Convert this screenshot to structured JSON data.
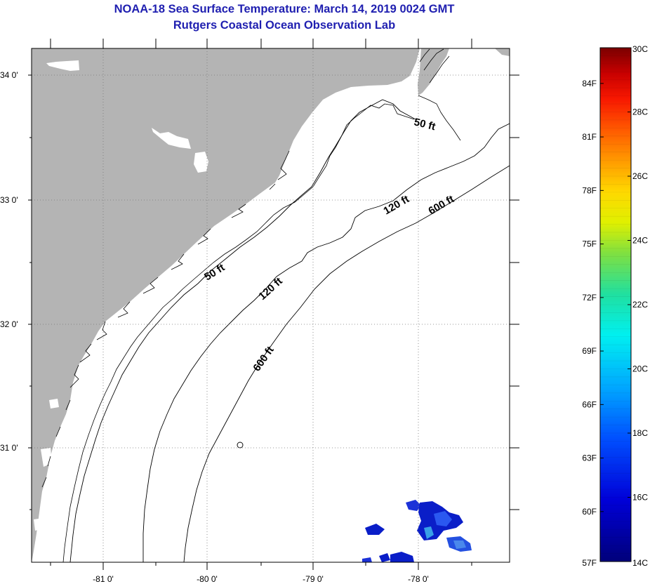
{
  "header": {
    "title": "NOAA-18 Sea Surface Temperature:  March 14, 2019 0024 GMT",
    "subtitle": "Rutgers Coastal Ocean Observation Lab"
  },
  "map": {
    "lon_labels": [
      "-81 0'",
      "-80 0'",
      "-79 0'",
      "-78 0'"
    ],
    "lat_labels": [
      "34 0'",
      "33 0'",
      "32 0'",
      "31 0'"
    ],
    "contour_labels": {
      "c50_north": "50 ft",
      "c50_south": "50 ft",
      "c120_north": "120 ft",
      "c120_south": "120 ft",
      "c600_north": "600 ft",
      "c600_south": "600 ft"
    },
    "land_color": "#b4b4b4",
    "ocean_color": "#ffffff"
  },
  "colorbar": {
    "fahrenheit_labels": [
      "84F",
      "81F",
      "78F",
      "75F",
      "72F",
      "69F",
      "66F",
      "63F",
      "60F",
      "57F"
    ],
    "celsius_labels": [
      "30C",
      "28C",
      "26C",
      "24C",
      "22C",
      "20C",
      "18C",
      "16C",
      "14C"
    ],
    "min_c": 14,
    "max_c": 30
  }
}
